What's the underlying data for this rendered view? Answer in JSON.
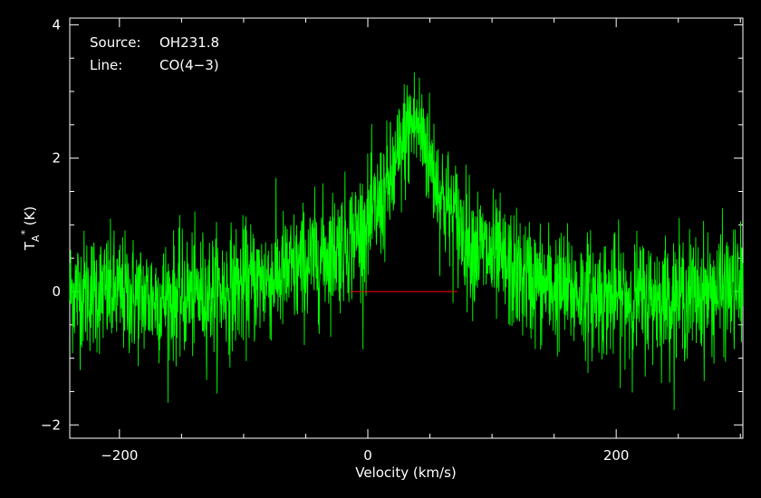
{
  "chart_data": {
    "type": "line",
    "annotations": [
      {
        "key": "Source:",
        "value": "OH231.8"
      },
      {
        "key": "Line:",
        "value": "CO(4−3)"
      }
    ],
    "xlabel": "Velocity (km/s)",
    "ylabel": {
      "base": "T",
      "subscript": "A",
      "superscript": "*",
      "unit": " (K)"
    },
    "xlim": [
      -240,
      302
    ],
    "ylim": [
      -2.2,
      4.1
    ],
    "grid": false,
    "x_ticks": [
      {
        "value": -200,
        "label": "−200"
      },
      {
        "value": 0,
        "label": "0"
      },
      {
        "value": 200,
        "label": "200"
      }
    ],
    "y_ticks": [
      {
        "value": -2,
        "label": "−2"
      },
      {
        "value": 0,
        "label": "0"
      },
      {
        "value": 2,
        "label": "2"
      },
      {
        "value": 4,
        "label": "4"
      }
    ],
    "series": [
      {
        "color": "#00ff00",
        "x": [
          -240,
          -220,
          -200,
          -180,
          -160,
          -140,
          -120,
          -100,
          -80,
          -60,
          -40,
          -20,
          0,
          10,
          20,
          25,
          30,
          35,
          40,
          45,
          50,
          55,
          60,
          70,
          80,
          100,
          120,
          140,
          160,
          180,
          200,
          220,
          240,
          260,
          280,
          302
        ],
        "y": [
          0.0,
          0.0,
          -0.05,
          -0.1,
          -0.1,
          -0.05,
          0.0,
          0.1,
          0.2,
          0.3,
          0.5,
          0.7,
          1.0,
          1.3,
          1.7,
          2.0,
          2.3,
          2.5,
          2.5,
          2.3,
          2.0,
          1.7,
          1.4,
          1.1,
          0.8,
          0.5,
          0.25,
          0.1,
          0.0,
          -0.05,
          -0.1,
          -0.1,
          -0.1,
          -0.05,
          0.0,
          0.05
        ],
        "noise_rms": 0.45
      }
    ],
    "baseline": {
      "color": "#ff0000",
      "x": [
        -15,
        72
      ],
      "y": 0
    }
  }
}
